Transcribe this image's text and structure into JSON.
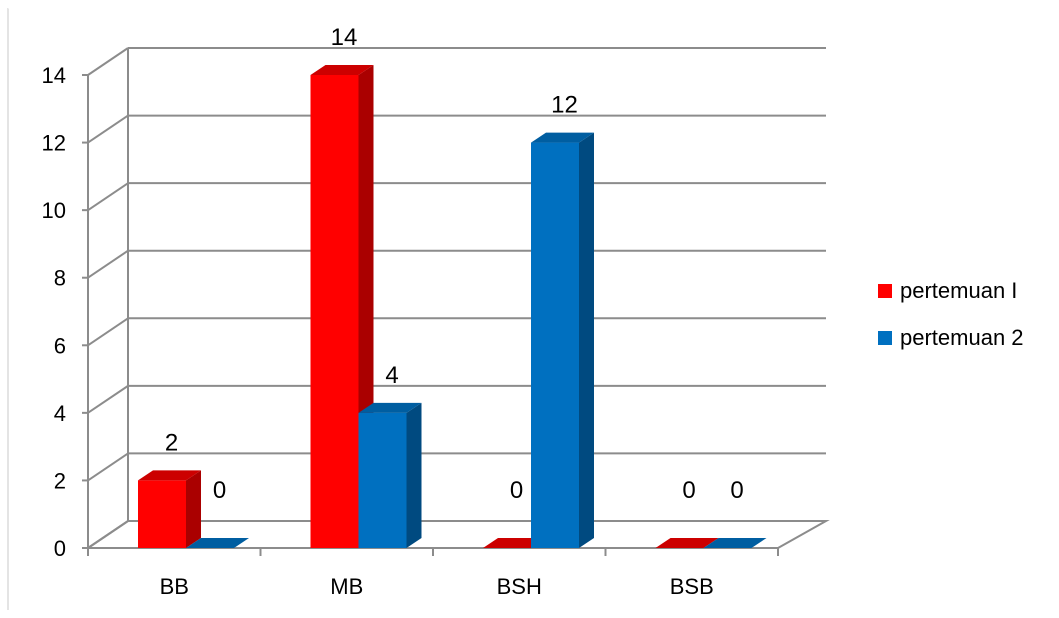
{
  "chart_data": {
    "type": "bar",
    "title": "",
    "xlabel": "",
    "ylabel": "",
    "categories": [
      "BB",
      "MB",
      "BSH",
      "BSB"
    ],
    "series": [
      {
        "name": "pertemuan I",
        "values": [
          2,
          14,
          0,
          0
        ],
        "color": "#ff0000",
        "side_color": "#aa0000",
        "top_color": "#cc0000"
      },
      {
        "name": "pertemuan 2",
        "values": [
          0,
          4,
          12,
          0
        ],
        "color": "#0070c0",
        "side_color": "#004a80",
        "top_color": "#005ea1"
      }
    ],
    "ylim": [
      0,
      14
    ],
    "yticks": [
      "0",
      "2",
      "4",
      "6",
      "8",
      "10",
      "12",
      "14"
    ],
    "data_labels": [
      [
        "2",
        "14",
        "0",
        "0"
      ],
      [
        "0",
        "4",
        "12",
        "0"
      ]
    ],
    "grid": true,
    "legend": "right",
    "view": "3d"
  }
}
